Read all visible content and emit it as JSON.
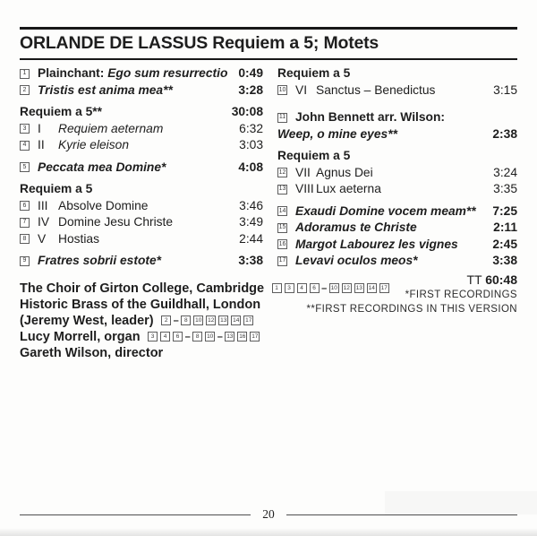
{
  "header": {
    "title": "ORLANDE DE LASSUS Requiem a 5; Motets"
  },
  "left_items": [
    {
      "kind": "track",
      "num": "1",
      "prefix": "Plainchant: ",
      "title": "Ego sum resurrectio",
      "time": "0:49",
      "bold": true,
      "italic": true
    },
    {
      "kind": "track",
      "num": "2",
      "title": "Tristis est anima mea**",
      "time": "3:28",
      "bold": true,
      "italic": true
    },
    {
      "kind": "header",
      "text": "Requiem a 5**",
      "time": "30:08",
      "gap": true
    },
    {
      "kind": "track",
      "num": "3",
      "roman": "I",
      "title": "Requiem aeternam",
      "time": "6:32",
      "italic": true
    },
    {
      "kind": "track",
      "num": "4",
      "roman": "II",
      "title": "Kyrie eleison",
      "time": "3:03",
      "italic": true
    },
    {
      "kind": "track",
      "num": "5",
      "title": "Peccata mea Domine*",
      "time": "4:08",
      "bold": true,
      "italic": true,
      "gap": true
    },
    {
      "kind": "header",
      "text": "Requiem a 5",
      "gap": true
    },
    {
      "kind": "track",
      "num": "6",
      "roman": "III",
      "title": "Absolve Domine",
      "time": "3:46"
    },
    {
      "kind": "track",
      "num": "7",
      "roman": "IV",
      "title": "Domine Jesu Christe",
      "time": "3:49"
    },
    {
      "kind": "track",
      "num": "8",
      "roman": "V",
      "title": "Hostias",
      "time": "2:44"
    },
    {
      "kind": "track",
      "num": "9",
      "title": "Fratres sobrii estote*",
      "time": "3:38",
      "bold": true,
      "italic": true,
      "gap": true
    }
  ],
  "right_items": [
    {
      "kind": "header",
      "text": "Requiem a 5"
    },
    {
      "kind": "track",
      "num": "10",
      "roman": "VI",
      "title": "Sanctus – Benedictus",
      "time": "3:15"
    },
    {
      "kind": "twoline",
      "num": "11",
      "heading": "John Bennett arr. Wilson:",
      "title": "Weep, o mine eyes**",
      "time": "2:38",
      "gap_lg": true
    },
    {
      "kind": "header",
      "text": "Requiem a 5",
      "gap": true
    },
    {
      "kind": "track",
      "num": "12",
      "roman": "VII",
      "title": "Agnus Dei",
      "time": "3:24"
    },
    {
      "kind": "track",
      "num": "13",
      "roman": "VIII",
      "title": "Lux aeterna",
      "time": "3:35"
    },
    {
      "kind": "track",
      "num": "14",
      "title": "Exaudi Domine vocem meam**",
      "time": "7:25",
      "bold": true,
      "italic": true,
      "gap": true
    },
    {
      "kind": "track",
      "num": "15",
      "title": "Adoramus te Christe",
      "time": "2:11",
      "bold": true,
      "italic": true
    },
    {
      "kind": "track",
      "num": "16",
      "title": "Margot Labourez les vignes",
      "time": "2:45",
      "bold": true,
      "italic": true
    },
    {
      "kind": "track",
      "num": "17",
      "title": "Levavi oculos meos*",
      "time": "3:38",
      "bold": true,
      "italic": true
    }
  ],
  "credits": [
    {
      "text": "The Choir of Girton College, Cambridge",
      "refs": [
        "1",
        "3",
        "4",
        "6",
        "–",
        "10",
        "12",
        "13",
        "14",
        "17"
      ]
    },
    {
      "text": "Historic Brass of the Guildhall, London",
      "refs": []
    },
    {
      "text": "(Jeremy West, leader)",
      "refs": [
        "2",
        "–",
        "8",
        "10",
        "12",
        "13",
        "14",
        "17"
      ]
    },
    {
      "text": "Lucy Morrell, organ",
      "refs": [
        "3",
        "4",
        "6",
        "–",
        "8",
        "10",
        "–",
        "13",
        "16",
        "17"
      ]
    },
    {
      "text": "Gareth Wilson, director",
      "refs": []
    }
  ],
  "totals": {
    "label": "TT",
    "time": "60:48"
  },
  "footnotes": {
    "first": "*FIRST RECORDINGS",
    "second": "**FIRST RECORDINGS IN THIS VERSION"
  },
  "footer": {
    "page_number": "20"
  }
}
